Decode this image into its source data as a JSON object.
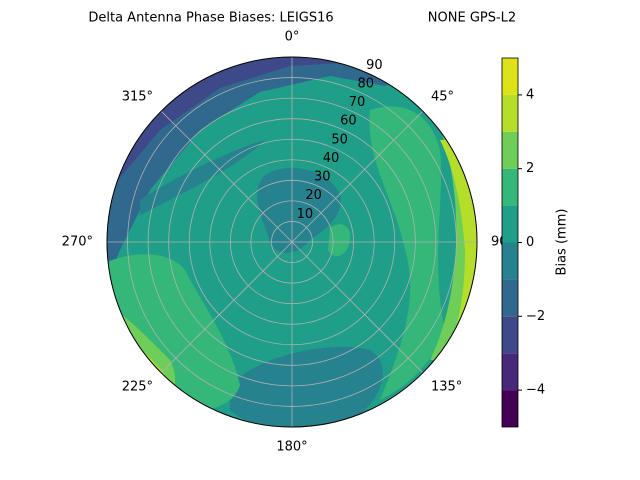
{
  "chart_data": {
    "type": "polar_contour",
    "title": "Delta Antenna Phase Biases: LEIGS16",
    "subtitle": "NONE GPS-L2",
    "theta_zero": "top",
    "theta_direction": "clockwise",
    "thetaticks": [
      {
        "value": 0,
        "label": "0°"
      },
      {
        "value": 45,
        "label": "45°"
      },
      {
        "value": 90,
        "label": "90°"
      },
      {
        "value": 135,
        "label": "135°"
      },
      {
        "value": 180,
        "label": "180°"
      },
      {
        "value": 225,
        "label": "225°"
      },
      {
        "value": 270,
        "label": "270°"
      },
      {
        "value": 315,
        "label": "315°"
      }
    ],
    "rlim": [
      0,
      90
    ],
    "rticks": [
      10,
      20,
      30,
      40,
      50,
      60,
      70,
      80,
      90
    ],
    "grid": true,
    "levels": [
      -5,
      -4,
      -3,
      -2,
      -1,
      0,
      1,
      2,
      3,
      4,
      5
    ],
    "colors": [
      "#440154",
      "#482878",
      "#3e4989",
      "#31688e",
      "#26828e",
      "#1f9e89",
      "#35b779",
      "#6ece58",
      "#b5de2b",
      "#dde318"
    ],
    "colorbar_label": "Bias (mm)",
    "colorbar_ticks": [
      {
        "value": -4,
        "label": "−4"
      },
      {
        "value": -2,
        "label": "−2"
      },
      0,
      2,
      4
    ]
  }
}
